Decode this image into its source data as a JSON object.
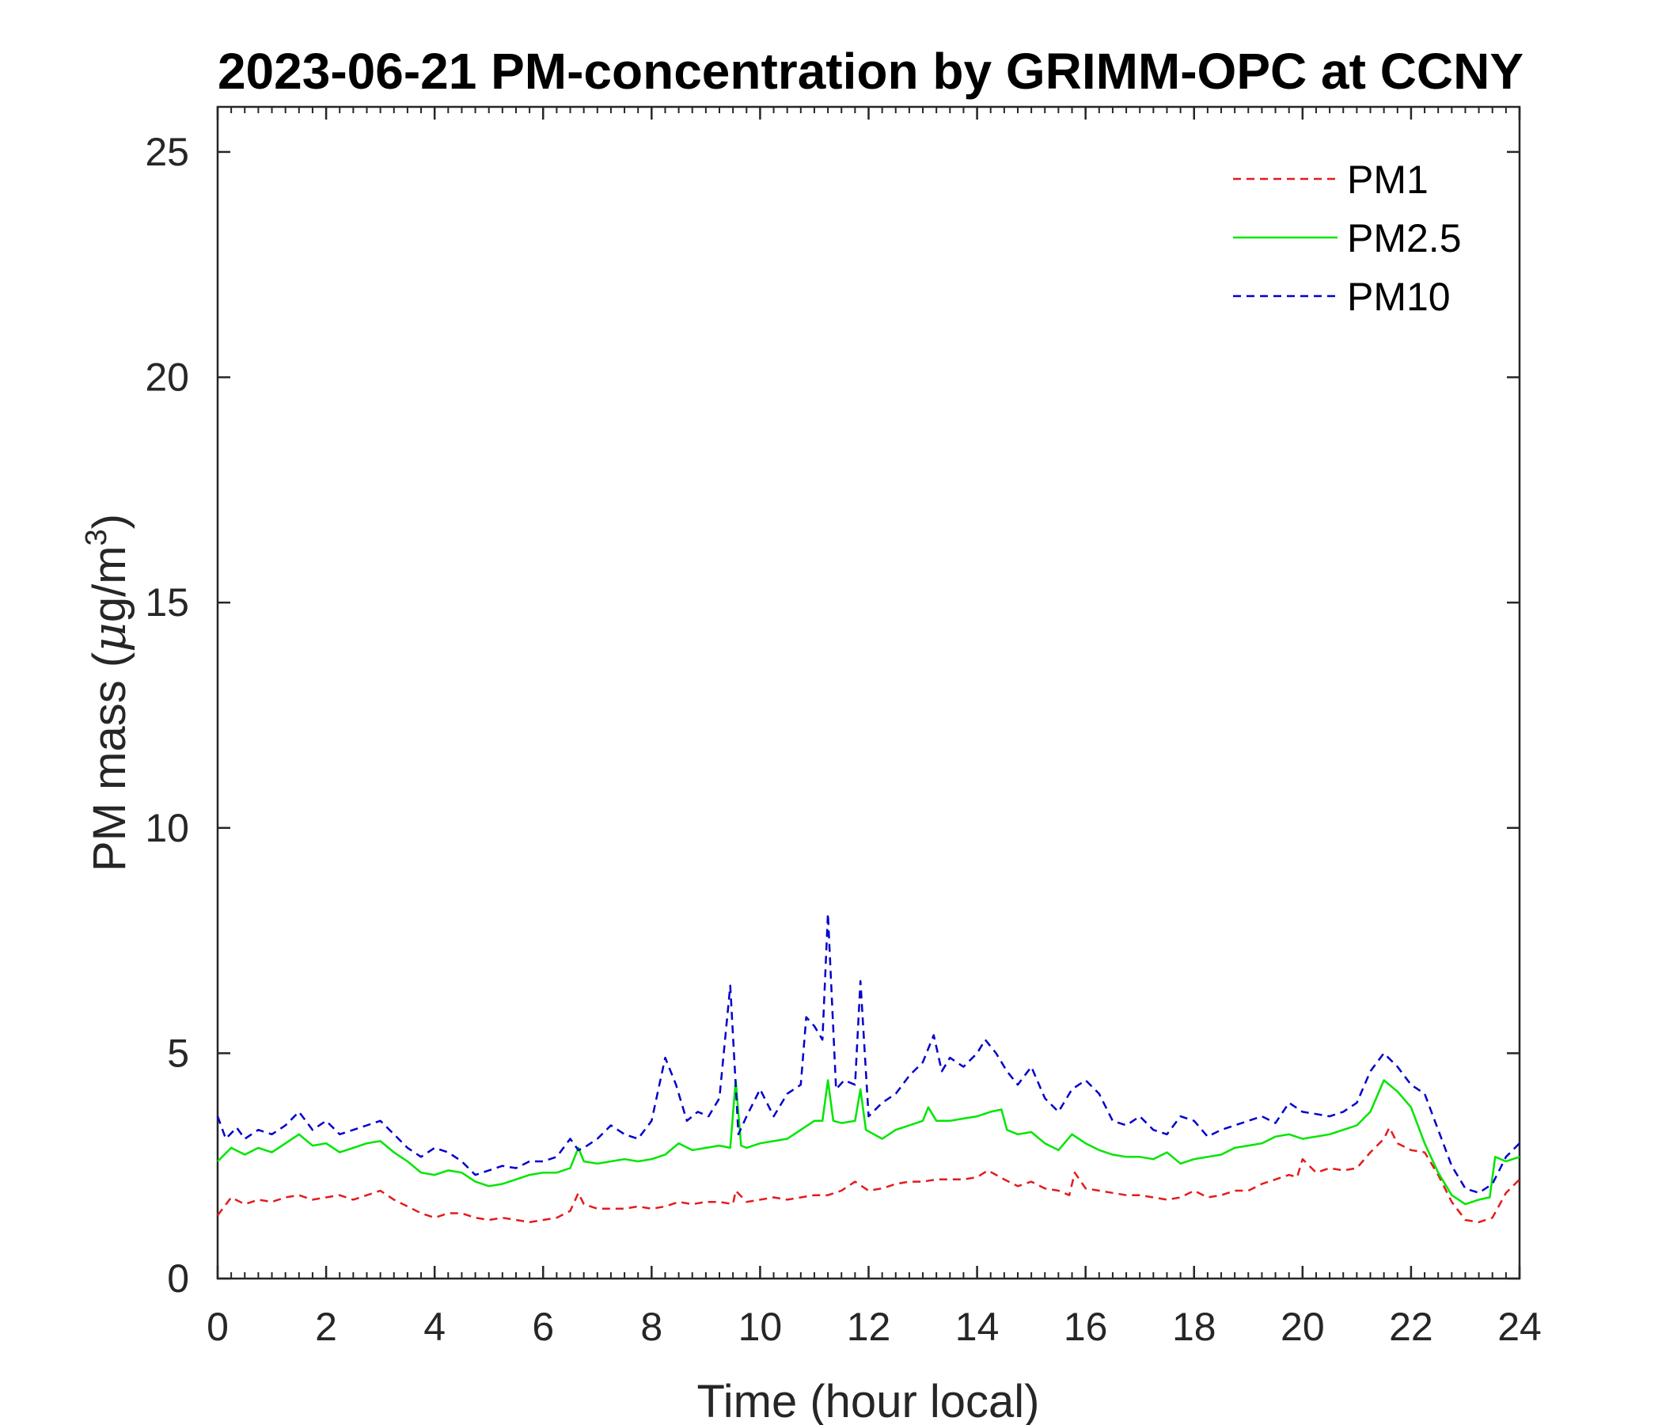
{
  "chart_data": {
    "type": "line",
    "title": "2023-06-21 PM-concentration by GRIMM-OPC at CCNY",
    "xlabel": "Time (hour local)",
    "ylabel_main": "PM mass (",
    "ylabel_mu": "μ",
    "ylabel_unit": "g/m",
    "ylabel_sup": "3",
    "ylabel_close": ")",
    "xlim": [
      0,
      24
    ],
    "ylim": [
      0,
      26
    ],
    "xticks": [
      0,
      2,
      4,
      6,
      8,
      10,
      12,
      14,
      16,
      18,
      20,
      22,
      24
    ],
    "yticks": [
      0,
      5,
      10,
      15,
      20,
      25
    ],
    "xtick_labels": [
      "0",
      "2",
      "4",
      "6",
      "8",
      "10",
      "12",
      "14",
      "16",
      "18",
      "20",
      "22",
      "24"
    ],
    "ytick_labels": [
      "0",
      "5",
      "10",
      "15",
      "20",
      "25"
    ],
    "grid": false,
    "legend_position": "top-right",
    "series": [
      {
        "name": "PM1",
        "color": "#e41a1c",
        "dash": "dashed",
        "x": [
          0,
          0.25,
          0.5,
          0.75,
          1,
          1.25,
          1.5,
          1.75,
          2,
          2.25,
          2.5,
          2.75,
          3,
          3.25,
          3.5,
          3.75,
          4,
          4.25,
          4.5,
          4.75,
          5,
          5.25,
          5.5,
          5.75,
          6,
          6.25,
          6.5,
          6.65,
          6.75,
          7,
          7.25,
          7.5,
          7.75,
          8,
          8.25,
          8.5,
          8.75,
          9,
          9.25,
          9.5,
          9.55,
          9.75,
          10,
          10.25,
          10.5,
          10.75,
          11,
          11.25,
          11.5,
          11.75,
          12,
          12.25,
          12.5,
          12.75,
          13,
          13.25,
          13.5,
          13.75,
          14,
          14.2,
          14.5,
          14.75,
          15,
          15.25,
          15.5,
          15.7,
          15.8,
          16,
          16.25,
          16.5,
          16.75,
          17,
          17.25,
          17.5,
          17.75,
          18,
          18.25,
          18.5,
          18.75,
          19,
          19.25,
          19.5,
          19.75,
          19.9,
          20,
          20.25,
          20.5,
          20.75,
          21,
          21.25,
          21.5,
          21.6,
          21.75,
          22,
          22.25,
          22.5,
          22.75,
          23,
          23.25,
          23.5,
          23.75,
          24
        ],
        "values": [
          1.4,
          1.8,
          1.65,
          1.75,
          1.7,
          1.8,
          1.85,
          1.75,
          1.8,
          1.85,
          1.75,
          1.85,
          1.95,
          1.75,
          1.6,
          1.45,
          1.35,
          1.45,
          1.45,
          1.35,
          1.3,
          1.35,
          1.3,
          1.25,
          1.3,
          1.35,
          1.5,
          1.9,
          1.65,
          1.55,
          1.55,
          1.55,
          1.6,
          1.55,
          1.6,
          1.7,
          1.65,
          1.7,
          1.7,
          1.65,
          1.95,
          1.7,
          1.75,
          1.8,
          1.75,
          1.8,
          1.85,
          1.85,
          1.95,
          2.15,
          1.95,
          2.0,
          2.1,
          2.15,
          2.15,
          2.2,
          2.2,
          2.2,
          2.25,
          2.4,
          2.2,
          2.05,
          2.15,
          2.0,
          1.95,
          1.85,
          2.35,
          2.0,
          1.95,
          1.9,
          1.85,
          1.85,
          1.8,
          1.75,
          1.8,
          1.95,
          1.8,
          1.85,
          1.95,
          1.95,
          2.1,
          2.2,
          2.3,
          2.25,
          2.65,
          2.35,
          2.45,
          2.4,
          2.45,
          2.8,
          3.1,
          3.35,
          3.0,
          2.85,
          2.8,
          2.3,
          1.7,
          1.3,
          1.25,
          1.35,
          1.9,
          2.2
        ]
      },
      {
        "name": "PM2.5",
        "color": "#00e600",
        "dash": "solid",
        "x": [
          0,
          0.25,
          0.5,
          0.75,
          1,
          1.25,
          1.5,
          1.75,
          2,
          2.25,
          2.5,
          2.75,
          3,
          3.25,
          3.5,
          3.75,
          4,
          4.25,
          4.5,
          4.75,
          5,
          5.25,
          5.5,
          5.75,
          6,
          6.25,
          6.5,
          6.65,
          6.75,
          7,
          7.25,
          7.5,
          7.75,
          8,
          8.25,
          8.5,
          8.75,
          9,
          9.25,
          9.45,
          9.55,
          9.65,
          9.75,
          10,
          10.25,
          10.5,
          10.75,
          11,
          11.15,
          11.25,
          11.35,
          11.5,
          11.75,
          11.85,
          11.95,
          12.25,
          12.5,
          12.75,
          13,
          13.1,
          13.25,
          13.5,
          13.75,
          14,
          14.25,
          14.45,
          14.55,
          14.75,
          15,
          15.25,
          15.5,
          15.75,
          16,
          16.25,
          16.5,
          16.75,
          17,
          17.25,
          17.5,
          17.75,
          18,
          18.25,
          18.5,
          18.75,
          19,
          19.25,
          19.5,
          19.75,
          20,
          20.25,
          20.5,
          20.75,
          21,
          21.25,
          21.5,
          21.75,
          22,
          22.25,
          22.5,
          22.75,
          23,
          23.25,
          23.45,
          23.55,
          23.75,
          24
        ],
        "values": [
          2.6,
          2.9,
          2.75,
          2.9,
          2.8,
          3.0,
          3.2,
          2.95,
          3.0,
          2.8,
          2.9,
          3.0,
          3.05,
          2.8,
          2.6,
          2.35,
          2.3,
          2.4,
          2.35,
          2.15,
          2.05,
          2.1,
          2.2,
          2.3,
          2.35,
          2.35,
          2.45,
          2.9,
          2.6,
          2.55,
          2.6,
          2.65,
          2.6,
          2.65,
          2.75,
          3.0,
          2.85,
          2.9,
          2.95,
          2.9,
          4.4,
          2.95,
          2.9,
          3.0,
          3.05,
          3.1,
          3.3,
          3.5,
          3.5,
          4.4,
          3.5,
          3.45,
          3.5,
          4.2,
          3.3,
          3.1,
          3.3,
          3.4,
          3.5,
          3.8,
          3.5,
          3.5,
          3.55,
          3.6,
          3.7,
          3.75,
          3.3,
          3.2,
          3.25,
          3.0,
          2.85,
          3.2,
          3.0,
          2.85,
          2.75,
          2.7,
          2.7,
          2.65,
          2.8,
          2.55,
          2.65,
          2.7,
          2.75,
          2.9,
          2.95,
          3.0,
          3.15,
          3.2,
          3.1,
          3.15,
          3.2,
          3.3,
          3.4,
          3.7,
          4.4,
          4.15,
          3.8,
          3.0,
          2.35,
          1.85,
          1.65,
          1.75,
          1.8,
          2.7,
          2.6,
          2.7
        ]
      },
      {
        "name": "PM10",
        "color": "#0000cc",
        "dash": "dashed",
        "x": [
          0,
          0.15,
          0.35,
          0.5,
          0.75,
          1,
          1.25,
          1.5,
          1.75,
          2,
          2.25,
          2.5,
          2.75,
          3,
          3.25,
          3.5,
          3.75,
          4,
          4.25,
          4.5,
          4.75,
          5,
          5.25,
          5.5,
          5.75,
          6,
          6.25,
          6.5,
          6.65,
          6.75,
          7,
          7.25,
          7.5,
          7.75,
          8,
          8.25,
          8.45,
          8.65,
          8.85,
          9.05,
          9.25,
          9.45,
          9.6,
          9.75,
          10,
          10.25,
          10.5,
          10.75,
          10.85,
          11,
          11.15,
          11.25,
          11.4,
          11.55,
          11.75,
          11.85,
          12,
          12.25,
          12.5,
          12.75,
          13,
          13.2,
          13.35,
          13.5,
          13.75,
          14,
          14.15,
          14.35,
          14.55,
          14.75,
          15,
          15.25,
          15.5,
          15.75,
          16,
          16.25,
          16.5,
          16.75,
          17,
          17.25,
          17.5,
          17.75,
          18,
          18.25,
          18.5,
          18.75,
          19,
          19.25,
          19.5,
          19.75,
          20,
          20.25,
          20.5,
          20.75,
          21,
          21.25,
          21.5,
          21.75,
          22,
          22.25,
          22.5,
          22.75,
          23,
          23.25,
          23.5,
          23.75,
          24
        ],
        "values": [
          3.6,
          3.1,
          3.35,
          3.1,
          3.3,
          3.2,
          3.4,
          3.7,
          3.3,
          3.5,
          3.2,
          3.3,
          3.4,
          3.5,
          3.2,
          2.9,
          2.7,
          2.9,
          2.8,
          2.6,
          2.3,
          2.4,
          2.5,
          2.45,
          2.6,
          2.6,
          2.7,
          3.1,
          2.85,
          2.9,
          3.1,
          3.4,
          3.2,
          3.1,
          3.5,
          4.9,
          4.3,
          3.5,
          3.7,
          3.6,
          4.0,
          6.5,
          3.2,
          3.6,
          4.2,
          3.6,
          4.1,
          4.3,
          5.8,
          5.6,
          5.3,
          8.1,
          4.2,
          4.4,
          4.3,
          6.6,
          3.6,
          3.9,
          4.1,
          4.5,
          4.8,
          5.4,
          4.6,
          4.9,
          4.7,
          5.0,
          5.3,
          5.0,
          4.6,
          4.3,
          4.7,
          4.0,
          3.7,
          4.2,
          4.4,
          4.1,
          3.5,
          3.4,
          3.6,
          3.3,
          3.2,
          3.6,
          3.5,
          3.15,
          3.3,
          3.4,
          3.5,
          3.6,
          3.45,
          3.9,
          3.7,
          3.65,
          3.6,
          3.7,
          3.9,
          4.6,
          5.0,
          4.7,
          4.3,
          4.1,
          3.3,
          2.5,
          2.0,
          1.9,
          2.1,
          2.7,
          3.0
        ]
      }
    ]
  }
}
